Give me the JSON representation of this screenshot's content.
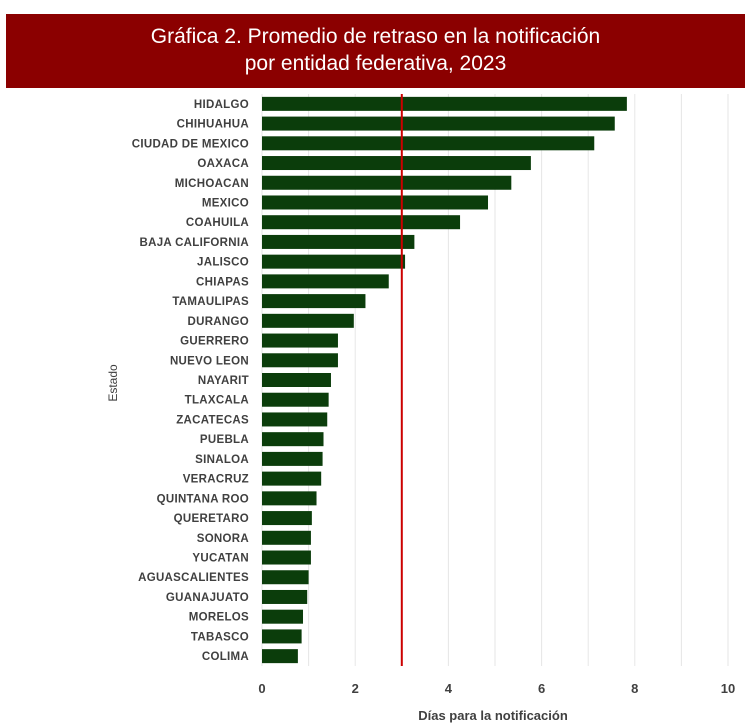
{
  "title_lines": [
    "Gráfica 2. Promedio de retraso en la notificación",
    "por entidad federativa, 2023"
  ],
  "colors": {
    "banner": "#8b0000",
    "bar": "#0b3d0b",
    "reference_line": "#cc0000",
    "grid": "#e6e6e6"
  },
  "chart_data": {
    "type": "bar",
    "orientation": "horizontal",
    "title": "Gráfica 2. Promedio de retraso en la notificación por entidad federativa, 2023",
    "xlabel": "Días para la notificación",
    "ylabel": "Estado",
    "xlim": [
      0,
      10
    ],
    "xticks": [
      0,
      2,
      4,
      6,
      8,
      10
    ],
    "grid": true,
    "reference_line": 3.0,
    "categories": [
      "HIDALGO",
      "CHIHUAHUA",
      "CIUDAD DE MEXICO",
      "OAXACA",
      "MICHOACAN",
      "MEXICO",
      "COAHUILA",
      "BAJA CALIFORNIA",
      "JALISCO",
      "CHIAPAS",
      "TAMAULIPAS",
      "DURANGO",
      "GUERRERO",
      "NUEVO LEON",
      "NAYARIT",
      "TLAXCALA",
      "ZACATECAS",
      "PUEBLA",
      "SINALOA",
      "VERACRUZ",
      "QUINTANA ROO",
      "QUERETARO",
      "SONORA",
      "YUCATAN",
      "AGUASCALIENTES",
      "GUANAJUATO",
      "MORELOS",
      "TABASCO",
      "COLIMA"
    ],
    "values": [
      7.83,
      7.57,
      7.13,
      5.77,
      5.35,
      4.85,
      4.25,
      3.27,
      3.07,
      2.72,
      2.22,
      1.97,
      1.63,
      1.63,
      1.48,
      1.43,
      1.4,
      1.32,
      1.3,
      1.27,
      1.17,
      1.07,
      1.05,
      1.05,
      1.0,
      0.97,
      0.88,
      0.85,
      0.77
    ]
  }
}
